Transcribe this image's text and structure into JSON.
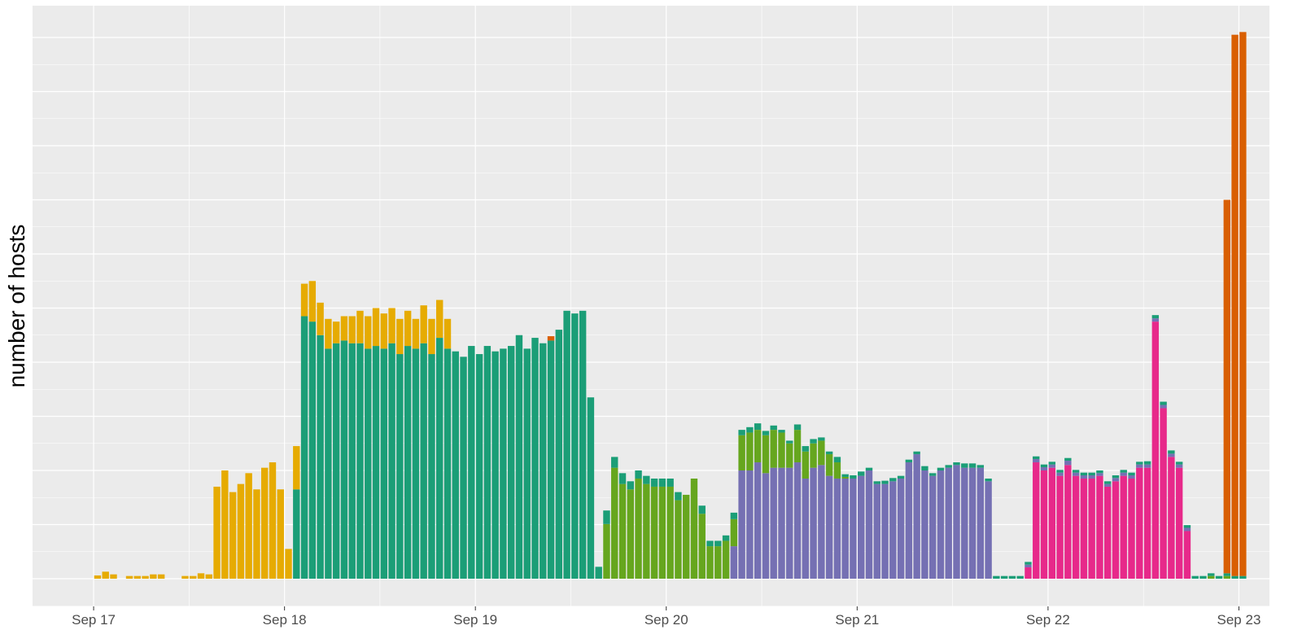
{
  "chart_data": {
    "type": "bar",
    "stacked": true,
    "ylabel": "number of hosts",
    "xlabel": "",
    "x_axis": {
      "ticks": [
        "Sep 17",
        "Sep 18",
        "Sep 19",
        "Sep 20",
        "Sep 21",
        "Sep 22",
        "Sep 23"
      ],
      "range_days": [
        16.68,
        23.16
      ]
    },
    "y_axis": {
      "tick_labels_visible": false,
      "range": [
        0,
        100
      ]
    },
    "bin_hours": 1,
    "start": "Sep 17 00:00",
    "grid": true,
    "legend": "none",
    "background": "#EBEBEB",
    "series": [
      {
        "color": "#D95F02",
        "values": [
          0,
          0,
          0,
          0,
          0,
          0,
          0,
          0,
          0,
          0,
          0,
          0,
          0,
          0,
          0,
          0,
          0,
          0,
          0,
          0,
          0,
          0,
          0,
          0,
          0,
          0,
          0,
          0,
          0,
          0,
          0,
          0,
          0,
          0,
          0,
          0,
          0,
          0,
          0,
          0,
          0,
          0,
          0,
          0,
          0,
          0,
          0,
          0,
          0,
          0,
          0,
          0,
          0,
          0,
          0,
          0,
          0,
          0.8,
          0,
          0,
          0,
          0,
          0,
          0,
          0,
          0,
          0,
          0,
          0,
          0,
          0,
          0,
          0,
          0,
          0,
          0,
          0,
          0,
          0,
          0,
          0,
          0,
          0,
          0,
          0,
          0,
          0,
          0,
          0,
          0,
          0,
          0,
          0,
          0,
          0,
          0,
          0,
          0,
          0,
          0,
          0,
          0,
          0,
          0,
          0,
          0,
          0,
          0,
          0,
          0,
          0,
          0,
          0,
          0,
          0,
          0,
          0,
          0,
          0,
          0,
          0,
          0,
          0,
          0,
          0,
          0,
          0,
          0,
          0,
          0,
          0,
          0,
          0,
          0,
          0,
          0,
          0,
          0,
          0,
          0,
          0,
          0,
          69,
          100,
          100.5
        ]
      },
      {
        "color": "#E6AB02",
        "values": [
          0.6,
          1.3,
          0.8,
          0,
          0.5,
          0.5,
          0.5,
          0.8,
          0.8,
          0,
          0,
          0.5,
          0.5,
          1.0,
          0.8,
          17,
          20,
          16,
          17.5,
          19.5,
          16.5,
          20.5,
          21.5,
          16.5,
          5.5,
          8,
          6,
          7.5,
          6,
          5.5,
          4,
          4.5,
          5,
          6,
          6,
          7,
          6.5,
          6.5,
          6.5,
          6.5,
          5.5,
          7,
          6.5,
          7,
          5.5,
          0,
          0,
          0,
          0,
          0,
          0,
          0,
          0,
          0,
          0,
          0,
          0,
          0,
          0,
          0,
          0,
          0,
          0,
          0,
          0,
          0,
          0,
          0,
          0,
          0,
          0,
          0,
          0,
          0,
          0,
          0,
          0,
          0,
          0,
          0,
          0,
          0,
          0,
          0,
          0,
          0,
          0,
          0,
          0,
          0,
          0,
          0,
          0,
          0,
          0,
          0,
          0,
          0,
          0,
          0,
          0,
          0,
          0,
          0,
          0,
          0,
          0,
          0,
          0,
          0,
          0,
          0,
          0,
          0,
          0,
          0,
          0,
          0,
          0,
          0,
          0,
          0,
          0,
          0,
          0,
          0,
          0,
          0,
          0,
          0,
          0,
          0,
          0,
          0,
          0,
          0,
          0,
          0,
          0,
          0,
          0,
          0,
          0,
          0
        ]
      },
      {
        "color": "#1B9E77",
        "values": [
          0,
          0,
          0,
          0,
          0,
          0,
          0,
          0,
          0,
          0,
          0,
          0,
          0,
          0,
          0,
          0,
          0,
          0,
          0,
          0,
          0,
          0,
          0,
          0,
          0,
          16.5,
          48.5,
          47.5,
          45,
          42.5,
          43.5,
          44,
          43.5,
          43.5,
          42.5,
          43,
          42.5,
          43.5,
          41.5,
          43,
          42.5,
          43.5,
          41.5,
          44.5,
          42.5,
          42,
          41,
          43,
          41.5,
          43,
          42,
          42.5,
          43,
          45,
          42.5,
          44.5,
          43.5,
          44,
          46,
          49.5,
          49,
          49.5,
          33.5,
          2.2,
          2.5,
          2,
          2,
          1.5,
          1.5,
          1.5,
          1.5,
          1.5,
          1.5,
          1.5,
          0,
          0,
          1.5,
          1,
          1,
          1,
          1.2,
          1,
          1,
          1.2,
          0.8,
          0.8,
          0.5,
          0.5,
          1,
          1,
          0.8,
          0.6,
          0.5,
          1,
          0.5,
          0.6,
          0.8,
          0.5,
          0.5,
          0.6,
          0.6,
          0.5,
          0.5,
          0.5,
          0.8,
          0.5,
          0.5,
          0.5,
          0.5,
          0.8,
          0.8,
          0.5,
          0.5,
          0.5,
          0.5,
          0.5,
          0.5,
          0.5,
          0.5,
          0.5,
          0.5,
          0.5,
          0.5,
          0.5,
          0.5,
          0.5,
          0.5,
          0.5,
          0.5,
          0.5,
          0.5,
          0.5,
          0.6,
          0.6,
          0.6,
          0.6,
          0.5,
          0.5,
          0.5,
          0.5,
          0.5,
          0.5,
          0.5,
          0.5,
          0.5,
          0.5,
          0.6,
          0
        ]
      },
      {
        "color": "#66A61E",
        "values": [
          0,
          0,
          0,
          0,
          0,
          0,
          0,
          0,
          0,
          0,
          0,
          0,
          0,
          0,
          0,
          0,
          0,
          0,
          0,
          0,
          0,
          0,
          0,
          0,
          0,
          0,
          0,
          0,
          0,
          0,
          0,
          0,
          0,
          0,
          0,
          0,
          0,
          0,
          0,
          0,
          0,
          0,
          0,
          0,
          0,
          0,
          0,
          0,
          0,
          0,
          0,
          0,
          0,
          0,
          0,
          0,
          0,
          0,
          0,
          0,
          0,
          0,
          0,
          0,
          10.1,
          20.5,
          17.5,
          16.5,
          18.5,
          17.5,
          17,
          17,
          17,
          14.5,
          15.5,
          18.5,
          12,
          6,
          6,
          7,
          5,
          6.5,
          7,
          6,
          7,
          7,
          6.5,
          4.5,
          6,
          5,
          4.5,
          4.5,
          4,
          3,
          0.3,
          0,
          0,
          0,
          0,
          0,
          0,
          0,
          0,
          0,
          0,
          0,
          0,
          0,
          0,
          0,
          0,
          0,
          0,
          0,
          0,
          0,
          0,
          0,
          0,
          0,
          0,
          0,
          0,
          0,
          0,
          0,
          0,
          0,
          0,
          0,
          0,
          0,
          0,
          0,
          0,
          0,
          0,
          0,
          0,
          0,
          0.5,
          0,
          0.5,
          0,
          0,
          0,
          0,
          0,
          0,
          0,
          0,
          0,
          0,
          0,
          0
        ]
      },
      {
        "color": "#7570B3",
        "values": [
          0,
          0,
          0,
          0,
          0,
          0,
          0,
          0,
          0,
          0,
          0,
          0,
          0,
          0,
          0,
          0,
          0,
          0,
          0,
          0,
          0,
          0,
          0,
          0,
          0,
          0,
          0,
          0,
          0,
          0,
          0,
          0,
          0,
          0,
          0,
          0,
          0,
          0,
          0,
          0,
          0,
          0,
          0,
          0,
          0,
          0,
          0,
          0,
          0,
          0,
          0,
          0,
          0,
          0,
          0,
          0,
          0,
          0,
          0,
          0,
          0,
          0,
          0,
          0,
          0,
          0,
          0,
          0,
          0,
          0,
          0,
          0,
          0,
          0,
          0,
          0,
          0,
          0,
          0,
          0,
          6,
          20,
          20,
          21.5,
          19.5,
          20.5,
          20.5,
          20.5,
          21.5,
          18.5,
          20.5,
          21,
          19,
          18.5,
          18.5,
          18.5,
          19,
          20,
          17.5,
          17.5,
          18,
          18.5,
          21.5,
          23,
          20,
          19,
          20,
          20.5,
          21,
          20.5,
          20.5,
          20.5,
          18,
          0,
          0,
          0,
          0,
          0.5,
          0.6,
          0.6,
          0.6,
          0.6,
          0.8,
          0.6,
          0.6,
          0.6,
          0.5,
          0.5,
          0.6,
          0.6,
          0.6,
          0.6,
          0.6,
          0.6,
          0.6,
          0.6,
          0.6,
          0.6,
          0,
          0,
          0
        ]
      },
      {
        "color": "#E7298A",
        "values": [
          0,
          0,
          0,
          0,
          0,
          0,
          0,
          0,
          0,
          0,
          0,
          0,
          0,
          0,
          0,
          0,
          0,
          0,
          0,
          0,
          0,
          0,
          0,
          0,
          0,
          0,
          0,
          0,
          0,
          0,
          0,
          0,
          0,
          0,
          0,
          0,
          0,
          0,
          0,
          0,
          0,
          0,
          0,
          0,
          0,
          0,
          0,
          0,
          0,
          0,
          0,
          0,
          0,
          0,
          0,
          0,
          0,
          0,
          0,
          0,
          0,
          0,
          0,
          0,
          0,
          0,
          0,
          0,
          0,
          0,
          0,
          0,
          0,
          0,
          0,
          0,
          0,
          0,
          0,
          0,
          0,
          0,
          0,
          0,
          0,
          0,
          0,
          0,
          0,
          0,
          0,
          0,
          0,
          0,
          0,
          0,
          0,
          0,
          0,
          0,
          0,
          0,
          0,
          0,
          0,
          0,
          0,
          0,
          0,
          0,
          0,
          0,
          0,
          0,
          0,
          0,
          0,
          2.1,
          21.5,
          20,
          20.5,
          19,
          21,
          19,
          18.5,
          18.5,
          19,
          17,
          18,
          19,
          18.5,
          20.5,
          20.5,
          47.5,
          31.5,
          22.5,
          20.5,
          8.8,
          0,
          0,
          0
        ]
      }
    ]
  }
}
